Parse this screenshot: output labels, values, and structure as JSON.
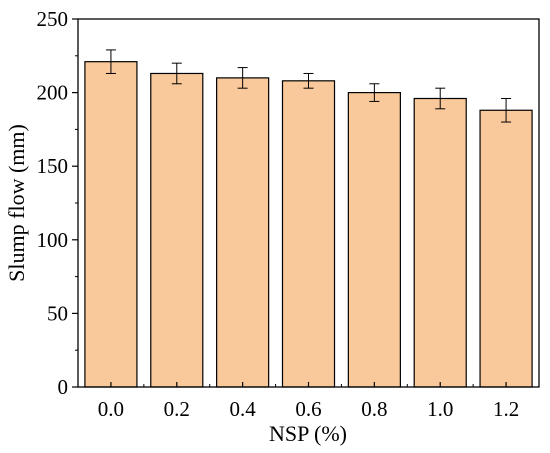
{
  "chart_data": {
    "type": "bar",
    "xlabel": "NSP (%)",
    "ylabel": "Slump flow (mm)",
    "categories": [
      "0.0",
      "0.2",
      "0.4",
      "0.6",
      "0.8",
      "1.0",
      "1.2"
    ],
    "values": [
      221,
      213,
      210,
      208,
      200,
      196,
      188
    ],
    "errors": [
      8,
      7,
      7,
      5,
      6,
      7,
      8
    ],
    "ylim": [
      0,
      250
    ],
    "yticks": [
      "0",
      "50",
      "100",
      "150",
      "200",
      "250"
    ],
    "grid": false,
    "colors": {
      "bar_fill": "#f9c89b",
      "bar_stroke": "#000000"
    }
  }
}
